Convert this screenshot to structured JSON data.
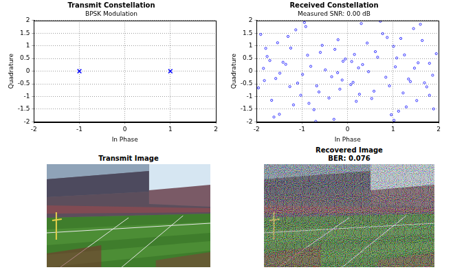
{
  "chart_data": [
    {
      "type": "scatter",
      "title": "Transmit Constellation",
      "subtitle": "BPSK Modulation",
      "x_label": "In Phase",
      "y_label": "Quadrature",
      "x": [
        -1,
        1
      ],
      "values": [
        0,
        0
      ],
      "color": "#0000ff",
      "marker": "x",
      "xlim": [
        -2,
        2
      ],
      "xticks": [
        -2,
        -1,
        0,
        1,
        2
      ],
      "ylim": [
        -2,
        2
      ],
      "yticks": [
        -2,
        -1.5,
        -1,
        -0.5,
        0,
        0.5,
        1,
        1.5,
        2
      ],
      "grid": true
    },
    {
      "type": "scatter",
      "title": "Received Constellation",
      "subtitle": "Measured SNR: 0.00 dB",
      "x_label": "In Phase",
      "y_label": "Quadrature",
      "x": [
        -1.42,
        -0.63,
        -1.85,
        -0.21,
        -1.1,
        -0.88,
        -1.67,
        -0.35,
        -1.25,
        -0.05,
        -1.96,
        -0.74,
        -1.31,
        -0.49,
        -1.58,
        -0.92,
        -1.03,
        -0.17,
        -1.77,
        -0.56,
        -1.19,
        -0.81,
        -1.49,
        0.12,
        -1.91,
        -0.68,
        -1.36,
        -0.28,
        -1.62,
        -0.99,
        -0.41,
        -1.14,
        -1.83,
        -0.6,
        -1.27,
        0.24,
        -1.54,
        -0.85,
        -1.71,
        -0.12,
        1.38,
        0.61,
        1.87,
        0.19,
        1.08,
        0.92,
        1.64,
        0.33,
        1.22,
        0.07,
        1.95,
        0.77,
        1.29,
        0.46,
        1.55,
        0.96,
        1.01,
        0.15,
        1.74,
        0.53,
        1.17,
        0.84,
        1.47,
        -0.1,
        1.89,
        0.66,
        1.34,
        0.26,
        1.6,
        1.05,
        0.43,
        1.12,
        1.8,
        0.58,
        1.25,
        -0.22,
        1.52,
        0.87,
        1.69,
        0.09,
        -0.95,
        1.02,
        -1.5,
        1.45,
        -0.3,
        0.3,
        -1.8,
        1.8,
        -0.7,
        0.72
      ],
      "values": [
        0.35,
        -0.82,
        0.11,
        1.24,
        -0.47,
        0.63,
        -1.15,
        -0.22,
        0.91,
        0.48,
        -0.66,
        -1.52,
        1.37,
        0.05,
        -0.29,
        1.76,
        -0.95,
        -0.71,
        0.58,
        1.02,
        -1.33,
        0.19,
        -0.08,
        -0.44,
        1.45,
        -0.58,
        0.27,
        0.86,
        -1.81,
        -0.13,
        -1.06,
        1.63,
        -0.37,
        0.74,
        -0.61,
        0.13,
        1.12,
        -1.27,
        0.42,
        -0.35,
        -0.41,
        0.77,
        -0.16,
        -1.19,
        0.52,
        -0.58,
        1.21,
        0.26,
        -0.86,
        -0.53,
        0.69,
        1.48,
        -1.41,
        -0.02,
        0.33,
        -1.72,
        0.98,
        0.66,
        -0.62,
        -1.08,
        1.29,
        -0.24,
        0.12,
        0.39,
        -1.49,
        0.55,
        -0.31,
        -0.91,
        1.85,
        0.17,
        1.11,
        -1.58,
        0.31,
        -0.79,
        0.64,
        -0.06,
        -1.16,
        1.33,
        -0.46,
        0.38,
        1.92,
        -1.94,
        -1.7,
        1.68,
        -1.9,
        1.88,
        0.9,
        -0.95,
        -1.98,
        1.97
      ],
      "color": "#0000ff",
      "marker": "circle",
      "xlim": [
        -2,
        2
      ],
      "xticks": [
        -2,
        -1,
        0,
        1,
        2
      ],
      "ylim": [
        -2,
        2
      ],
      "yticks": [
        -2,
        -1.5,
        -1,
        -0.5,
        0,
        0.5,
        1,
        1.5,
        2
      ],
      "grid": true
    }
  ],
  "images": [
    {
      "title": "Transmit Image"
    },
    {
      "title": "Recovered Image",
      "subtitle": "BER: 0.076"
    }
  ]
}
